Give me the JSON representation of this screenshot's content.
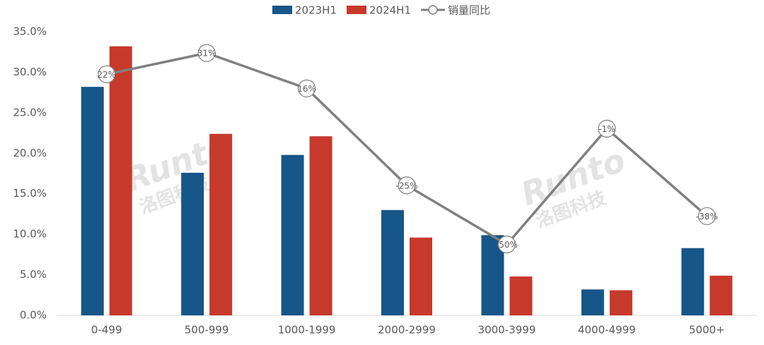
{
  "chart_data": {
    "type": "bar-line",
    "categories": [
      "0-499",
      "500-999",
      "1000-1999",
      "2000-2999",
      "3000-3999",
      "4000-4999",
      "5000+"
    ],
    "series": [
      {
        "name": "2023H1",
        "type": "bar",
        "color": "#175689",
        "values": [
          28.2,
          17.6,
          19.8,
          13.0,
          9.9,
          3.2,
          8.3
        ]
      },
      {
        "name": "2024H1",
        "type": "bar",
        "color": "#c7392b",
        "values": [
          33.2,
          22.4,
          22.1,
          9.6,
          4.8,
          3.1,
          4.9
        ]
      },
      {
        "name": "销量同比",
        "type": "line",
        "axis": "y2",
        "color": "#808080",
        "values": [
          22,
          31,
          16,
          -25,
          -50,
          -1,
          -38
        ],
        "value_labels": [
          "22%",
          "31%",
          "16%",
          "-25%",
          "-50%",
          "-1%",
          "-38%"
        ]
      }
    ],
    "ylim": [
      0,
      35
    ],
    "yticks": [
      {
        "value": 0,
        "label": "0.0%"
      },
      {
        "value": 5,
        "label": "5.0%"
      },
      {
        "value": 10,
        "label": "10.0%"
      },
      {
        "value": 15,
        "label": "15.0%"
      },
      {
        "value": 20,
        "label": "20.0%"
      },
      {
        "value": 25,
        "label": "25.0%"
      },
      {
        "value": 30,
        "label": "30.0%"
      },
      {
        "value": 35,
        "label": "35.0%"
      }
    ],
    "y2lim": [
      -80,
      40
    ],
    "watermark": [
      "Runto",
      "洛图科技"
    ],
    "legend": "top"
  }
}
